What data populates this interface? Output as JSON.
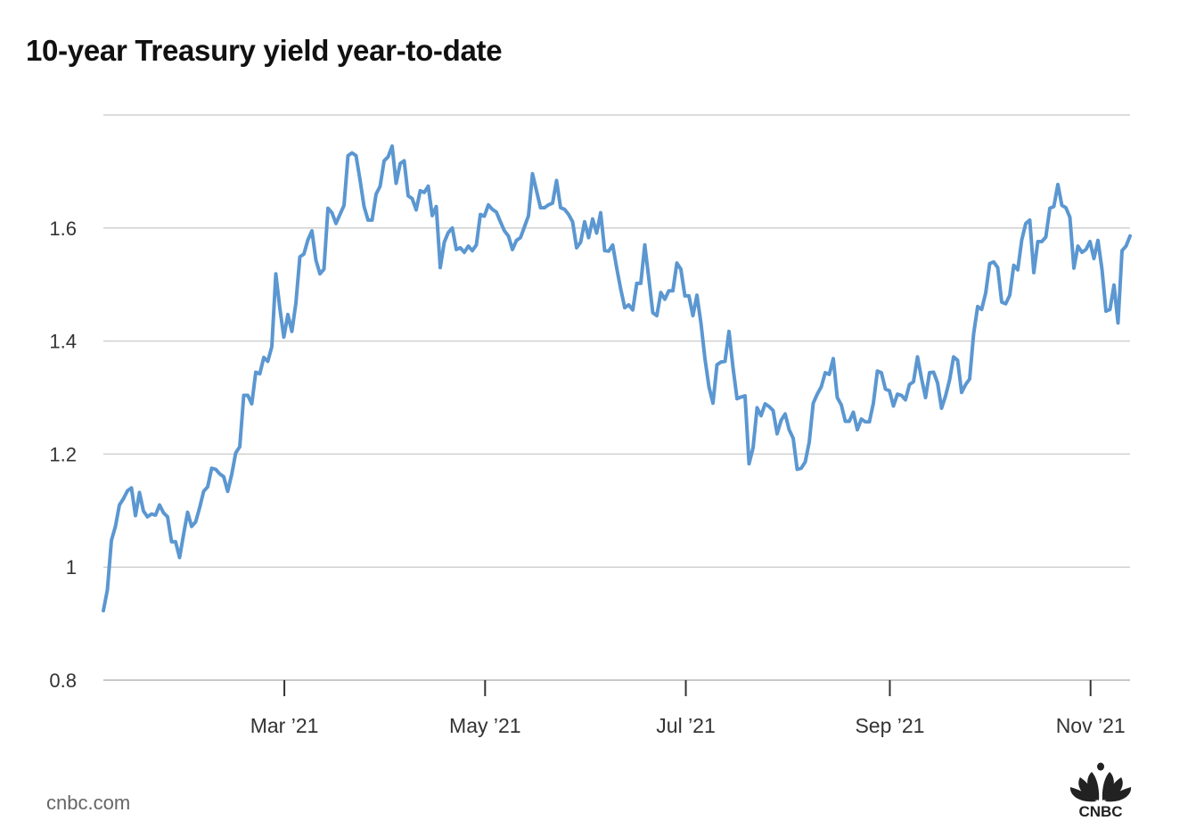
{
  "chart_data": {
    "type": "line",
    "title": "10-year Treasury yield year-to-date",
    "xlabel": "",
    "ylabel": "",
    "x_range": [
      "2021-01-05",
      "2021-11-13"
    ],
    "ylim": [
      0.8,
      1.8
    ],
    "y_ticks": [
      0.8,
      1,
      1.2,
      1.4,
      1.6,
      1.8
    ],
    "y_tick_labels": [
      "0.8",
      "1",
      "1.2",
      "1.4",
      "1.6",
      ""
    ],
    "x_ticks": [
      {
        "date": "2021-03-01",
        "label": "Mar ’21"
      },
      {
        "date": "2021-05-01",
        "label": "May ’21"
      },
      {
        "date": "2021-07-01",
        "label": "Jul ’21"
      },
      {
        "date": "2021-09-01",
        "label": "Sep ’21"
      },
      {
        "date": "2021-11-01",
        "label": "Nov ’21"
      }
    ],
    "grid": true,
    "legend": "none",
    "series": [
      {
        "name": "10-year Treasury yield",
        "color": "#5b97d1",
        "values": [
          0.923,
          0.96,
          1.047,
          1.072,
          1.11,
          1.121,
          1.135,
          1.14,
          1.091,
          1.132,
          1.099,
          1.089,
          1.094,
          1.092,
          1.11,
          1.096,
          1.089,
          1.045,
          1.045,
          1.017,
          1.058,
          1.097,
          1.072,
          1.08,
          1.105,
          1.134,
          1.142,
          1.175,
          1.173,
          1.165,
          1.16,
          1.134,
          1.164,
          1.202,
          1.213,
          1.304,
          1.304,
          1.289,
          1.345,
          1.342,
          1.371,
          1.364,
          1.39,
          1.519,
          1.458,
          1.407,
          1.447,
          1.417,
          1.467,
          1.549,
          1.554,
          1.579,
          1.595,
          1.543,
          1.519,
          1.527,
          1.635,
          1.627,
          1.608,
          1.624,
          1.64,
          1.728,
          1.733,
          1.728,
          1.685,
          1.638,
          1.614,
          1.614,
          1.66,
          1.674,
          1.719,
          1.726,
          1.745,
          1.679,
          1.714,
          1.719,
          1.657,
          1.652,
          1.632,
          1.666,
          1.663,
          1.674,
          1.622,
          1.638,
          1.53,
          1.575,
          1.592,
          1.6,
          1.562,
          1.565,
          1.557,
          1.568,
          1.56,
          1.57,
          1.624,
          1.621,
          1.641,
          1.633,
          1.628,
          1.611,
          1.595,
          1.586,
          1.562,
          1.578,
          1.583,
          1.602,
          1.622,
          1.696,
          1.666,
          1.636,
          1.636,
          1.641,
          1.644,
          1.684,
          1.636,
          1.633,
          1.624,
          1.611,
          1.565,
          1.575,
          1.611,
          1.583,
          1.616,
          1.591,
          1.627,
          1.56,
          1.559,
          1.57,
          1.529,
          1.492,
          1.459,
          1.464,
          1.455,
          1.502,
          1.502,
          1.57,
          1.511,
          1.45,
          1.445,
          1.486,
          1.474,
          1.489,
          1.489,
          1.538,
          1.527,
          1.48,
          1.48,
          1.445,
          1.481,
          1.432,
          1.369,
          1.319,
          1.29,
          1.358,
          1.363,
          1.364,
          1.417,
          1.353,
          1.298,
          1.301,
          1.303,
          1.183,
          1.211,
          1.282,
          1.268,
          1.289,
          1.284,
          1.277,
          1.236,
          1.26,
          1.271,
          1.243,
          1.228,
          1.173,
          1.175,
          1.186,
          1.221,
          1.29,
          1.306,
          1.319,
          1.344,
          1.341,
          1.369,
          1.3,
          1.287,
          1.258,
          1.258,
          1.274,
          1.243,
          1.262,
          1.257,
          1.257,
          1.29,
          1.347,
          1.344,
          1.315,
          1.312,
          1.285,
          1.306,
          1.304,
          1.296,
          1.323,
          1.328,
          1.372,
          1.334,
          1.3,
          1.344,
          1.345,
          1.326,
          1.281,
          1.303,
          1.331,
          1.372,
          1.366,
          1.309,
          1.323,
          1.333,
          1.413,
          1.461,
          1.456,
          1.485,
          1.537,
          1.54,
          1.53,
          1.469,
          1.466,
          1.481,
          1.534,
          1.526,
          1.579,
          1.608,
          1.614,
          1.521,
          1.576,
          1.576,
          1.584,
          1.635,
          1.638,
          1.677,
          1.64,
          1.636,
          1.619,
          1.529,
          1.568,
          1.557,
          1.562,
          1.576,
          1.546,
          1.578,
          1.527,
          1.453,
          1.456,
          1.499,
          1.432,
          1.56,
          1.568,
          1.586
        ]
      }
    ]
  },
  "footer": {
    "source": "cnbc.com",
    "logo_text": "CNBC"
  }
}
